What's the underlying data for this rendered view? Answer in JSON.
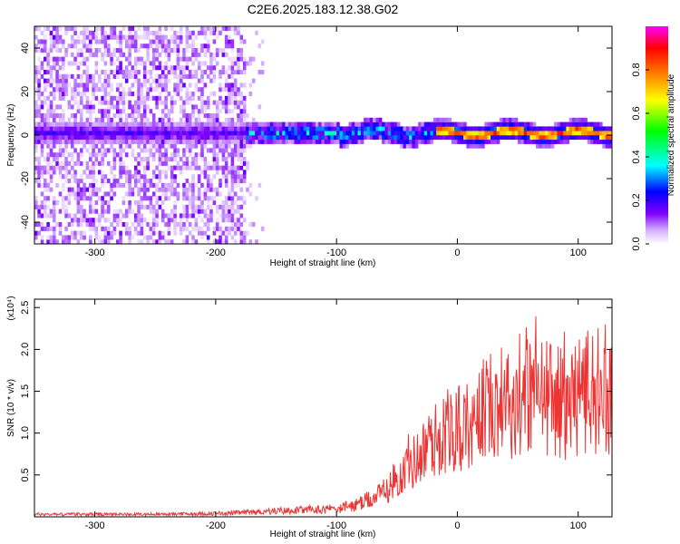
{
  "title": "C2E6.2025.183.12.38.G02",
  "chart_data": [
    {
      "type": "heatmap",
      "xlabel": "Height of straight line (km)",
      "ylabel": "Frequency (Hz)",
      "xlim": [
        -350,
        128
      ],
      "ylim": [
        -50,
        50
      ],
      "x_ticks": [
        -300,
        -200,
        -100,
        0,
        100
      ],
      "y_ticks": [
        -40,
        -20,
        0,
        20,
        40
      ],
      "colorbar": {
        "label": "Normalized spectral amplitude",
        "range": [
          0,
          1
        ],
        "ticks": [
          "0.0",
          "0.2",
          "0.4",
          "0.6",
          "0.8"
        ],
        "colors": [
          "#ffffff",
          "#cc99ff",
          "#7f00ff",
          "#0000ff",
          "#00ffff",
          "#00ff00",
          "#ffff00",
          "#ff7f00",
          "#ff0000",
          "#ff00ff"
        ]
      },
      "ridge": {
        "frequency_hz": 0,
        "x_start": -350,
        "x_end": 128,
        "noise_region_x": [
          -350,
          -175
        ],
        "peak_region_x": [
          -20,
          128
        ]
      }
    },
    {
      "type": "line",
      "xlabel": "Height of straight line (km)",
      "ylabel": "SNR (10 * v/v)",
      "multiplier": "(x10⁴)",
      "xlim": [
        -350,
        128
      ],
      "ylim": [
        0,
        2.6
      ],
      "x_ticks": [
        -300,
        -200,
        -100,
        0,
        100
      ],
      "y_ticks": [
        "0.5",
        "1.0",
        "1.5",
        "2.0",
        "2.5"
      ],
      "y_tick_values": [
        0.5,
        1.0,
        1.5,
        2.0,
        2.5
      ],
      "color": "#ee3333",
      "series": [
        {
          "x": [
            -350,
            -300,
            -250,
            -200,
            -175,
            -150,
            -125,
            -100,
            -90,
            -80,
            -70,
            -60,
            -50,
            -40,
            -30,
            -20,
            -10,
            0,
            10,
            20,
            30,
            40,
            50,
            60,
            70,
            80,
            90,
            100,
            110,
            120,
            128
          ],
          "values": [
            0.03,
            0.03,
            0.03,
            0.04,
            0.05,
            0.07,
            0.08,
            0.1,
            0.12,
            0.15,
            0.22,
            0.3,
            0.45,
            0.6,
            0.75,
            0.9,
            1.0,
            1.05,
            1.1,
            1.25,
            1.4,
            1.35,
            1.4,
            1.5,
            1.45,
            1.4,
            1.35,
            1.45,
            1.5,
            1.4,
            1.35
          ]
        }
      ]
    }
  ]
}
